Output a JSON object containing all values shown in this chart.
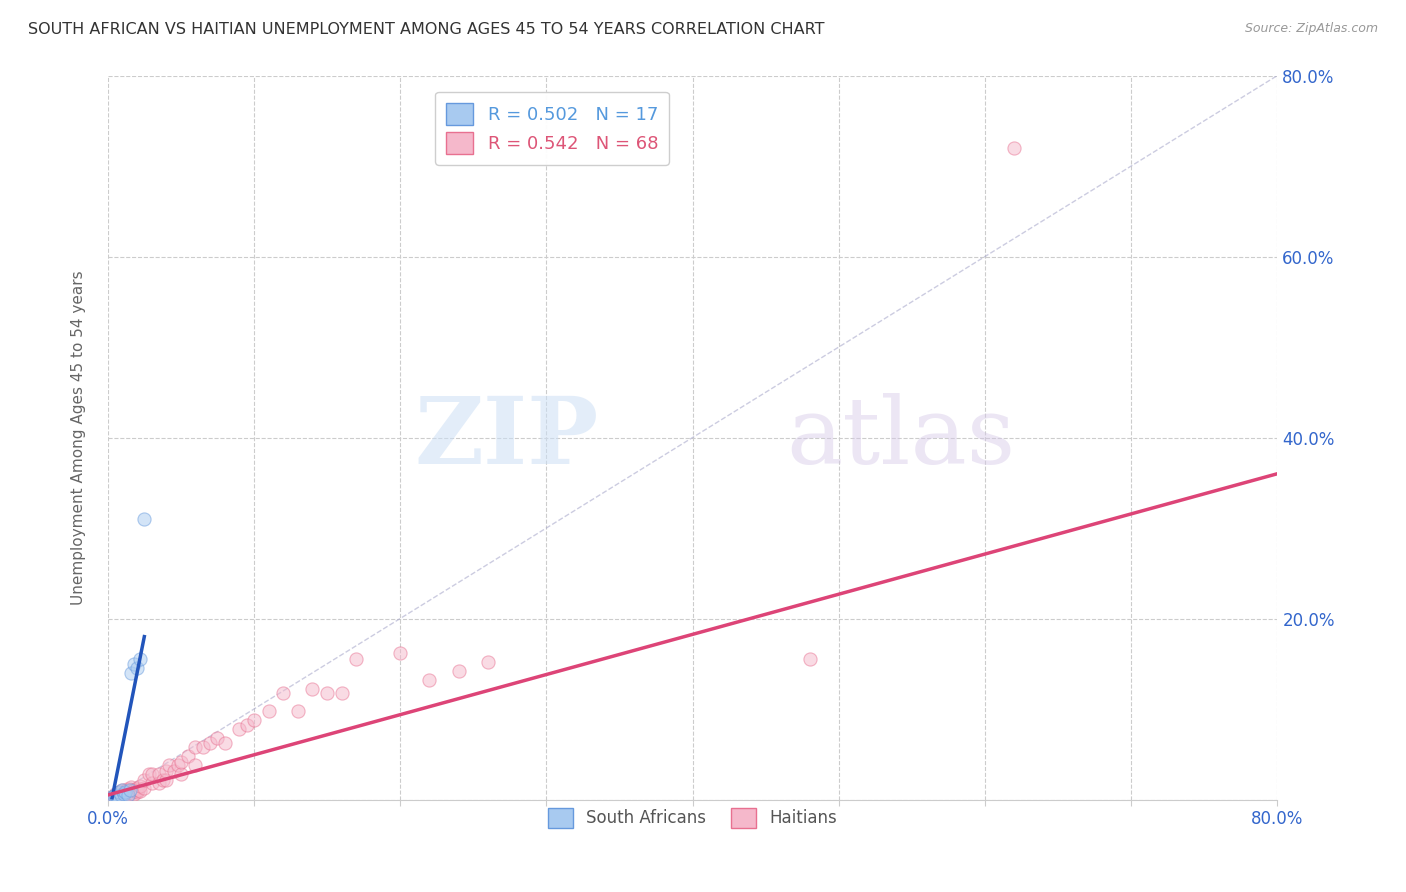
{
  "title": "SOUTH AFRICAN VS HAITIAN UNEMPLOYMENT AMONG AGES 45 TO 54 YEARS CORRELATION CHART",
  "source": "Source: ZipAtlas.com",
  "ylabel": "Unemployment Among Ages 45 to 54 years",
  "xlim": [
    0,
    0.8
  ],
  "ylim": [
    0,
    0.8
  ],
  "xticks": [
    0.0,
    0.1,
    0.2,
    0.3,
    0.4,
    0.5,
    0.6,
    0.7,
    0.8
  ],
  "yticks": [
    0.0,
    0.2,
    0.4,
    0.6,
    0.8
  ],
  "xtick_labels_left": [
    "0.0%",
    "",
    "",
    "",
    "",
    "",
    "",
    "",
    ""
  ],
  "xtick_labels_right": [
    "",
    "",
    "",
    "",
    "",
    "",
    "",
    "",
    "80.0%"
  ],
  "ytick_labels_right": [
    "",
    "20.0%",
    "40.0%",
    "60.0%",
    "80.0%"
  ],
  "background_color": "#ffffff",
  "grid_color": "#cccccc",
  "watermark_zip": "ZIP",
  "watermark_atlas": "atlas",
  "sa_color": "#a8caf0",
  "sa_edge_color": "#6699dd",
  "haitian_color": "#f5b8cb",
  "haitian_edge_color": "#e87090",
  "sa_r": 0.502,
  "sa_n": 17,
  "haitian_r": 0.542,
  "haitian_n": 68,
  "sa_trendline_color": "#2255bb",
  "haitian_trendline_color": "#dd4477",
  "diagonal_color": "#aaaacc",
  "sa_points_x": [
    0.003,
    0.004,
    0.005,
    0.006,
    0.007,
    0.008,
    0.009,
    0.01,
    0.011,
    0.012,
    0.014,
    0.015,
    0.016,
    0.018,
    0.02,
    0.022,
    0.025
  ],
  "sa_points_y": [
    0.003,
    0.004,
    0.005,
    0.002,
    0.003,
    0.008,
    0.005,
    0.01,
    0.006,
    0.008,
    0.005,
    0.01,
    0.14,
    0.15,
    0.145,
    0.155,
    0.31
  ],
  "haitian_points_x": [
    0.003,
    0.004,
    0.005,
    0.005,
    0.006,
    0.007,
    0.008,
    0.008,
    0.009,
    0.01,
    0.01,
    0.011,
    0.012,
    0.012,
    0.013,
    0.013,
    0.014,
    0.015,
    0.015,
    0.016,
    0.016,
    0.017,
    0.018,
    0.018,
    0.019,
    0.02,
    0.02,
    0.021,
    0.022,
    0.022,
    0.025,
    0.025,
    0.028,
    0.03,
    0.03,
    0.035,
    0.035,
    0.038,
    0.04,
    0.04,
    0.042,
    0.045,
    0.048,
    0.05,
    0.05,
    0.055,
    0.06,
    0.06,
    0.065,
    0.07,
    0.075,
    0.08,
    0.09,
    0.095,
    0.1,
    0.11,
    0.12,
    0.13,
    0.14,
    0.15,
    0.16,
    0.17,
    0.2,
    0.22,
    0.24,
    0.26,
    0.48,
    0.62
  ],
  "haitian_points_y": [
    0.003,
    0.004,
    0.003,
    0.006,
    0.005,
    0.006,
    0.004,
    0.008,
    0.005,
    0.006,
    0.01,
    0.007,
    0.005,
    0.009,
    0.007,
    0.012,
    0.006,
    0.008,
    0.012,
    0.007,
    0.014,
    0.01,
    0.006,
    0.011,
    0.009,
    0.008,
    0.013,
    0.01,
    0.009,
    0.015,
    0.013,
    0.022,
    0.028,
    0.018,
    0.028,
    0.018,
    0.028,
    0.022,
    0.022,
    0.032,
    0.038,
    0.032,
    0.038,
    0.028,
    0.042,
    0.048,
    0.038,
    0.058,
    0.058,
    0.062,
    0.068,
    0.062,
    0.078,
    0.082,
    0.088,
    0.098,
    0.118,
    0.098,
    0.122,
    0.118,
    0.118,
    0.155,
    0.162,
    0.132,
    0.142,
    0.152,
    0.155,
    0.72
  ],
  "sa_trendline_x": [
    0.003,
    0.025
  ],
  "sa_trendline_y": [
    0.002,
    0.18
  ],
  "haitian_trendline_x": [
    0.0,
    0.8
  ],
  "haitian_trendline_y": [
    0.005,
    0.36
  ],
  "marker_size": 90,
  "marker_alpha": 0.5
}
